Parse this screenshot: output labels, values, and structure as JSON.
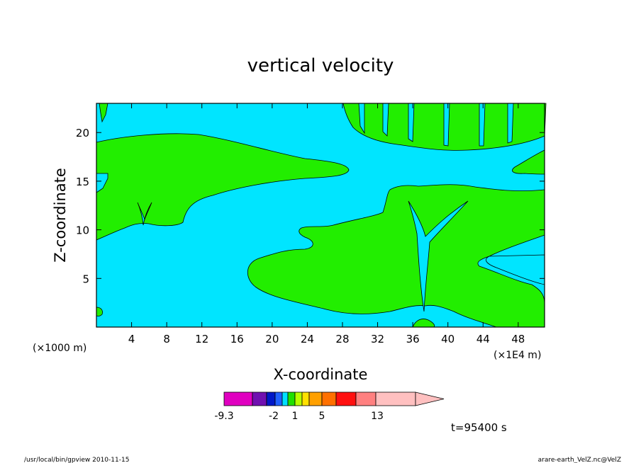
{
  "chart_data": {
    "type": "heatmap",
    "title": "vertical velocity",
    "xlabel": "X-coordinate",
    "ylabel": "Z-coordinate",
    "x_unit_left": "(×1000 m)",
    "x_unit_right": "(×1E4 m)",
    "xlim": [
      0,
      51
    ],
    "ylim": [
      0,
      23
    ],
    "x_ticks": [
      "4",
      "8",
      "12",
      "16",
      "20",
      "24",
      "28",
      "32",
      "36",
      "40",
      "44",
      "48"
    ],
    "y_ticks": [
      "5",
      "10",
      "15",
      "20"
    ],
    "time_label": "t=95400 s",
    "colors": {
      "negative": "#00e5ff",
      "positive": "#22ee00",
      "contour": "#000000"
    },
    "colorbar": {
      "labels": [
        "-9.3",
        "-2",
        "1",
        "5",
        "13"
      ],
      "colors": [
        "#e000c0",
        "#7010b0",
        "#0018c8",
        "#2060ff",
        "#00e0ff",
        "#20e000",
        "#b8ff00",
        "#ffe000",
        "#ffa000",
        "#ff7000",
        "#ff1010",
        "#ff8080",
        "#ffc0c0"
      ]
    }
  },
  "footer": {
    "left": "/usr/local/bin/gpview   2010-11-15",
    "right": "arare-earth_VelZ.nc@VelZ"
  }
}
